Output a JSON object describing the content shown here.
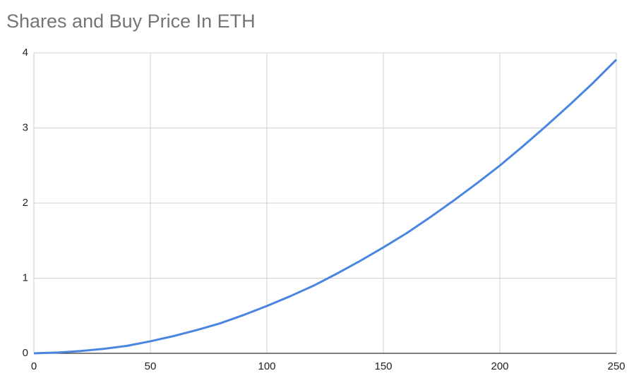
{
  "chart_data": {
    "type": "line",
    "title": "Shares and Buy Price In ETH",
    "x": [
      0,
      10,
      20,
      30,
      40,
      50,
      60,
      70,
      80,
      90,
      100,
      110,
      120,
      130,
      140,
      150,
      160,
      170,
      180,
      190,
      200,
      210,
      220,
      230,
      240,
      250
    ],
    "series": [
      {
        "color": "#4a86e0",
        "values": [
          0,
          0.01,
          0.03,
          0.06,
          0.1,
          0.16,
          0.23,
          0.31,
          0.4,
          0.51,
          0.63,
          0.76,
          0.9,
          1.06,
          1.23,
          1.41,
          1.6,
          1.81,
          2.03,
          2.26,
          2.5,
          2.76,
          3.03,
          3.31,
          3.6,
          3.91
        ]
      }
    ],
    "xlim": [
      0,
      250
    ],
    "xticks": [
      0,
      50,
      100,
      150,
      200,
      250
    ],
    "ylim": [
      0,
      4
    ],
    "yticks": [
      0,
      1,
      2,
      3,
      4
    ],
    "grid": true
  }
}
